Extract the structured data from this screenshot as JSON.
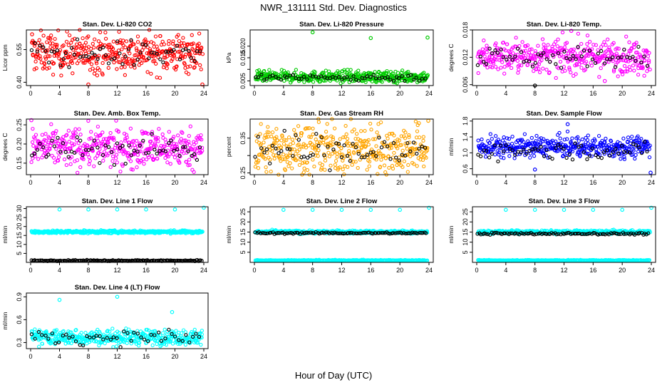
{
  "figure": {
    "title": "NWR_131111  Std. Dev. Diagnostics",
    "xlabel": "Hour of Day (UTC)"
  },
  "chart_data": [
    {
      "type": "scatter",
      "title": "Stan. Dev. Li-820 CO2",
      "ylabel": "Licor ppm",
      "xlim": [
        0,
        24
      ],
      "xticks": [
        0,
        4,
        8,
        12,
        16,
        20,
        24
      ],
      "ylim": [
        0.385,
        0.64
      ],
      "yticks": [
        0.4,
        0.55
      ],
      "ytick_labels": [
        "0.40",
        "0.55"
      ],
      "series": [
        {
          "color": "#ff0000",
          "center": 0.535,
          "spread": 0.045,
          "density": 420
        },
        {
          "color": "#000000",
          "center": 0.53,
          "spread": 0.03,
          "density": 60
        }
      ],
      "outliers": [
        {
          "x": 0.2,
          "y": 0.62,
          "color": "#ff0000"
        },
        {
          "x": 8,
          "y": 0.39,
          "color": "#ff0000"
        },
        {
          "x": 23.8,
          "y": 0.39,
          "color": "#ff0000"
        }
      ]
    },
    {
      "type": "scatter",
      "title": "Stan. Dev. Li-820 Pressure",
      "ylabel": "kPa",
      "xlim": [
        0,
        24
      ],
      "xticks": [
        0,
        4,
        8,
        12,
        16,
        20,
        24
      ],
      "ylim": [
        0.003,
        0.027
      ],
      "yticks": [
        0.005,
        0.01,
        0.015,
        0.02
      ],
      "ytick_labels": [
        "0.005",
        "",
        "0.015",
        "0.020"
      ],
      "series": [
        {
          "color": "#00cc00",
          "center": 0.0068,
          "spread": 0.0012,
          "density": 420
        },
        {
          "color": "#000000",
          "center": 0.0064,
          "spread": 0.0008,
          "density": 60
        }
      ],
      "outliers": [
        {
          "x": 8,
          "y": 0.026,
          "color": "#00cc00"
        },
        {
          "x": 16,
          "y": 0.0235,
          "color": "#00cc00"
        },
        {
          "x": 23.8,
          "y": 0.0237,
          "color": "#00cc00"
        },
        {
          "x": 12.8,
          "y": 0.0098,
          "color": "#00cc00"
        }
      ]
    },
    {
      "type": "scatter",
      "title": "Stan. Dev. Li-820 Temp.",
      "ylabel": "degrees C",
      "xlim": [
        0,
        24
      ],
      "xticks": [
        0,
        4,
        8,
        12,
        16,
        20,
        24
      ],
      "ylim": [
        0.0058,
        0.018
      ],
      "yticks": [
        0.006,
        0.012,
        0.018
      ],
      "ytick_labels": [
        "0.006",
        "0.012",
        "0.018"
      ],
      "series": [
        {
          "color": "#ff00ff",
          "center": 0.0122,
          "spread": 0.0018,
          "density": 420
        },
        {
          "color": "#000000",
          "center": 0.012,
          "spread": 0.0012,
          "density": 60
        }
      ],
      "outliers": [
        {
          "x": 13,
          "y": 0.0178,
          "color": "#ff00ff"
        },
        {
          "x": 8,
          "y": 0.0058,
          "color": "#000000"
        },
        {
          "x": 17.6,
          "y": 0.0068,
          "color": "#ff00ff"
        }
      ]
    },
    {
      "type": "scatter",
      "title": "Stan. Dev. Amb. Box Temp.",
      "ylabel": "degrees C",
      "xlim": [
        0,
        24
      ],
      "xticks": [
        0,
        4,
        8,
        12,
        16,
        20,
        24
      ],
      "ylim": [
        0.12,
        0.265
      ],
      "yticks": [
        0.15,
        0.2,
        0.25
      ],
      "ytick_labels": [
        "0.15",
        "0.20",
        "0.25"
      ],
      "series": [
        {
          "color": "#ff00ff",
          "center": 0.19,
          "spread": 0.025,
          "density": 420
        },
        {
          "color": "#000000",
          "center": 0.185,
          "spread": 0.018,
          "density": 60
        }
      ],
      "outliers": [
        {
          "x": 0.1,
          "y": 0.262,
          "color": "#ff00ff"
        }
      ]
    },
    {
      "type": "scatter",
      "title": "Stan. Dev. Gas Stream RH",
      "ylabel": "percent",
      "xlim": [
        0,
        24
      ],
      "xticks": [
        0,
        4,
        8,
        12,
        16,
        20,
        24
      ],
      "ylim": [
        0.245,
        0.405
      ],
      "yticks": [
        0.25,
        0.3,
        0.35
      ],
      "ytick_labels": [
        "0.25",
        "",
        "0.35"
      ],
      "series": [
        {
          "color": "#ffa500",
          "center": 0.32,
          "spread": 0.035,
          "density": 420
        },
        {
          "color": "#000000",
          "center": 0.315,
          "spread": 0.025,
          "density": 60
        }
      ],
      "outliers": [
        {
          "x": 23.9,
          "y": 0.4,
          "color": "#ffa500"
        }
      ]
    },
    {
      "type": "scatter",
      "title": "Stan. Dev. Sample Flow",
      "ylabel": "ml/min",
      "xlim": [
        0,
        24
      ],
      "xticks": [
        0,
        4,
        8,
        12,
        16,
        20,
        24
      ],
      "ylim": [
        0.45,
        1.85
      ],
      "yticks": [
        0.6,
        1.0,
        1.4,
        1.8
      ],
      "ytick_labels": [
        "0.6",
        "1.0",
        "1.4",
        "1.8"
      ],
      "series": [
        {
          "color": "#0000ff",
          "center": 1.15,
          "spread": 0.13,
          "density": 420
        },
        {
          "color": "#000000",
          "center": 1.05,
          "spread": 0.1,
          "density": 60
        }
      ],
      "outliers": [
        {
          "x": 12.5,
          "y": 1.72,
          "color": "#0000ff"
        },
        {
          "x": 8,
          "y": 0.58,
          "color": "#0000ff"
        },
        {
          "x": 23.9,
          "y": 0.5,
          "color": "#0000ff"
        }
      ]
    },
    {
      "type": "scatter",
      "title": "Stan. Dev. Line 1 Flow",
      "ylabel": "ml/min",
      "xlim": [
        0,
        24
      ],
      "xticks": [
        0,
        4,
        8,
        12,
        16,
        20,
        24
      ],
      "ylim": [
        0,
        31
      ],
      "yticks": [
        5,
        10,
        15,
        20,
        25,
        30
      ],
      "ytick_labels": [
        "5",
        "10",
        "15",
        "20",
        "25",
        "30"
      ],
      "series": [
        {
          "color": "#00ffff",
          "center": 17,
          "spread": 0.4,
          "density": 500
        },
        {
          "color": "#000000",
          "center": 1.0,
          "spread": 0.15,
          "density": 160
        }
      ],
      "outliers": [
        {
          "x": 4,
          "y": 29.5,
          "color": "#00ffff"
        },
        {
          "x": 8,
          "y": 29.5,
          "color": "#00ffff"
        },
        {
          "x": 12,
          "y": 29.5,
          "color": "#00ffff"
        },
        {
          "x": 16,
          "y": 29.5,
          "color": "#00ffff"
        },
        {
          "x": 20,
          "y": 29.5,
          "color": "#00ffff"
        },
        {
          "x": 24,
          "y": 30.5,
          "color": "#00ffff"
        }
      ]
    },
    {
      "type": "scatter",
      "title": "Stan. Dev. Line 2 Flow",
      "ylabel": "ml/min",
      "xlim": [
        0,
        24
      ],
      "xticks": [
        0,
        4,
        8,
        12,
        16,
        20,
        24
      ],
      "ylim": [
        0,
        27.5
      ],
      "yticks": [
        5,
        10,
        15,
        20,
        25
      ],
      "ytick_labels": [
        "5",
        "10",
        "15",
        "20",
        "25"
      ],
      "series": [
        {
          "color": "#00ffff",
          "center": 15,
          "spread": 0.4,
          "density": 420
        },
        {
          "color": "#000000",
          "center": 14.5,
          "spread": 0.2,
          "density": 100
        },
        {
          "color": "#00ffff",
          "center": 1.0,
          "spread": 0.12,
          "density": 300
        }
      ],
      "outliers": [
        {
          "x": 4,
          "y": 26,
          "color": "#00ffff"
        },
        {
          "x": 8,
          "y": 26,
          "color": "#00ffff"
        },
        {
          "x": 12,
          "y": 26,
          "color": "#00ffff"
        },
        {
          "x": 16,
          "y": 26,
          "color": "#00ffff"
        },
        {
          "x": 20,
          "y": 26,
          "color": "#00ffff"
        },
        {
          "x": 24,
          "y": 27,
          "color": "#00ffff"
        }
      ]
    },
    {
      "type": "scatter",
      "title": "Stan. Dev. Line 3 Flow",
      "ylabel": "ml/min",
      "xlim": [
        0,
        24
      ],
      "xticks": [
        0,
        4,
        8,
        12,
        16,
        20,
        24
      ],
      "ylim": [
        0,
        27.5
      ],
      "yticks": [
        5,
        10,
        15,
        20,
        25
      ],
      "ytick_labels": [
        "5",
        "10",
        "15",
        "20",
        "25"
      ],
      "series": [
        {
          "color": "#00ffff",
          "center": 15,
          "spread": 0.45,
          "density": 420
        },
        {
          "color": "#000000",
          "center": 14.2,
          "spread": 0.25,
          "density": 100
        },
        {
          "color": "#00ffff",
          "center": 1.0,
          "spread": 0.12,
          "density": 300
        }
      ],
      "outliers": [
        {
          "x": 4,
          "y": 26,
          "color": "#00ffff"
        },
        {
          "x": 8,
          "y": 26,
          "color": "#00ffff"
        },
        {
          "x": 12,
          "y": 26,
          "color": "#00ffff"
        },
        {
          "x": 16,
          "y": 26,
          "color": "#00ffff"
        },
        {
          "x": 20,
          "y": 26,
          "color": "#00ffff"
        },
        {
          "x": 24,
          "y": 27,
          "color": "#00ffff"
        }
      ]
    },
    {
      "type": "scatter",
      "title": "Stan. Dev. Line 4 (LT) Flow",
      "ylabel": "ml/min",
      "xlim": [
        0,
        24
      ],
      "xticks": [
        0,
        4,
        8,
        12,
        16,
        20,
        24
      ],
      "ylim": [
        0.22,
        0.95
      ],
      "yticks": [
        0.3,
        0.6,
        0.9
      ],
      "ytick_labels": [
        "0.3",
        "0.6",
        "0.9"
      ],
      "series": [
        {
          "color": "#00ffff",
          "center": 0.37,
          "spread": 0.05,
          "density": 420
        },
        {
          "color": "#000000",
          "center": 0.37,
          "spread": 0.045,
          "density": 50
        }
      ],
      "outliers": [
        {
          "x": 4,
          "y": 0.86,
          "color": "#00ffff"
        },
        {
          "x": 12,
          "y": 0.9,
          "color": "#00ffff"
        },
        {
          "x": 19.6,
          "y": 0.7,
          "color": "#00ffff"
        }
      ]
    }
  ]
}
